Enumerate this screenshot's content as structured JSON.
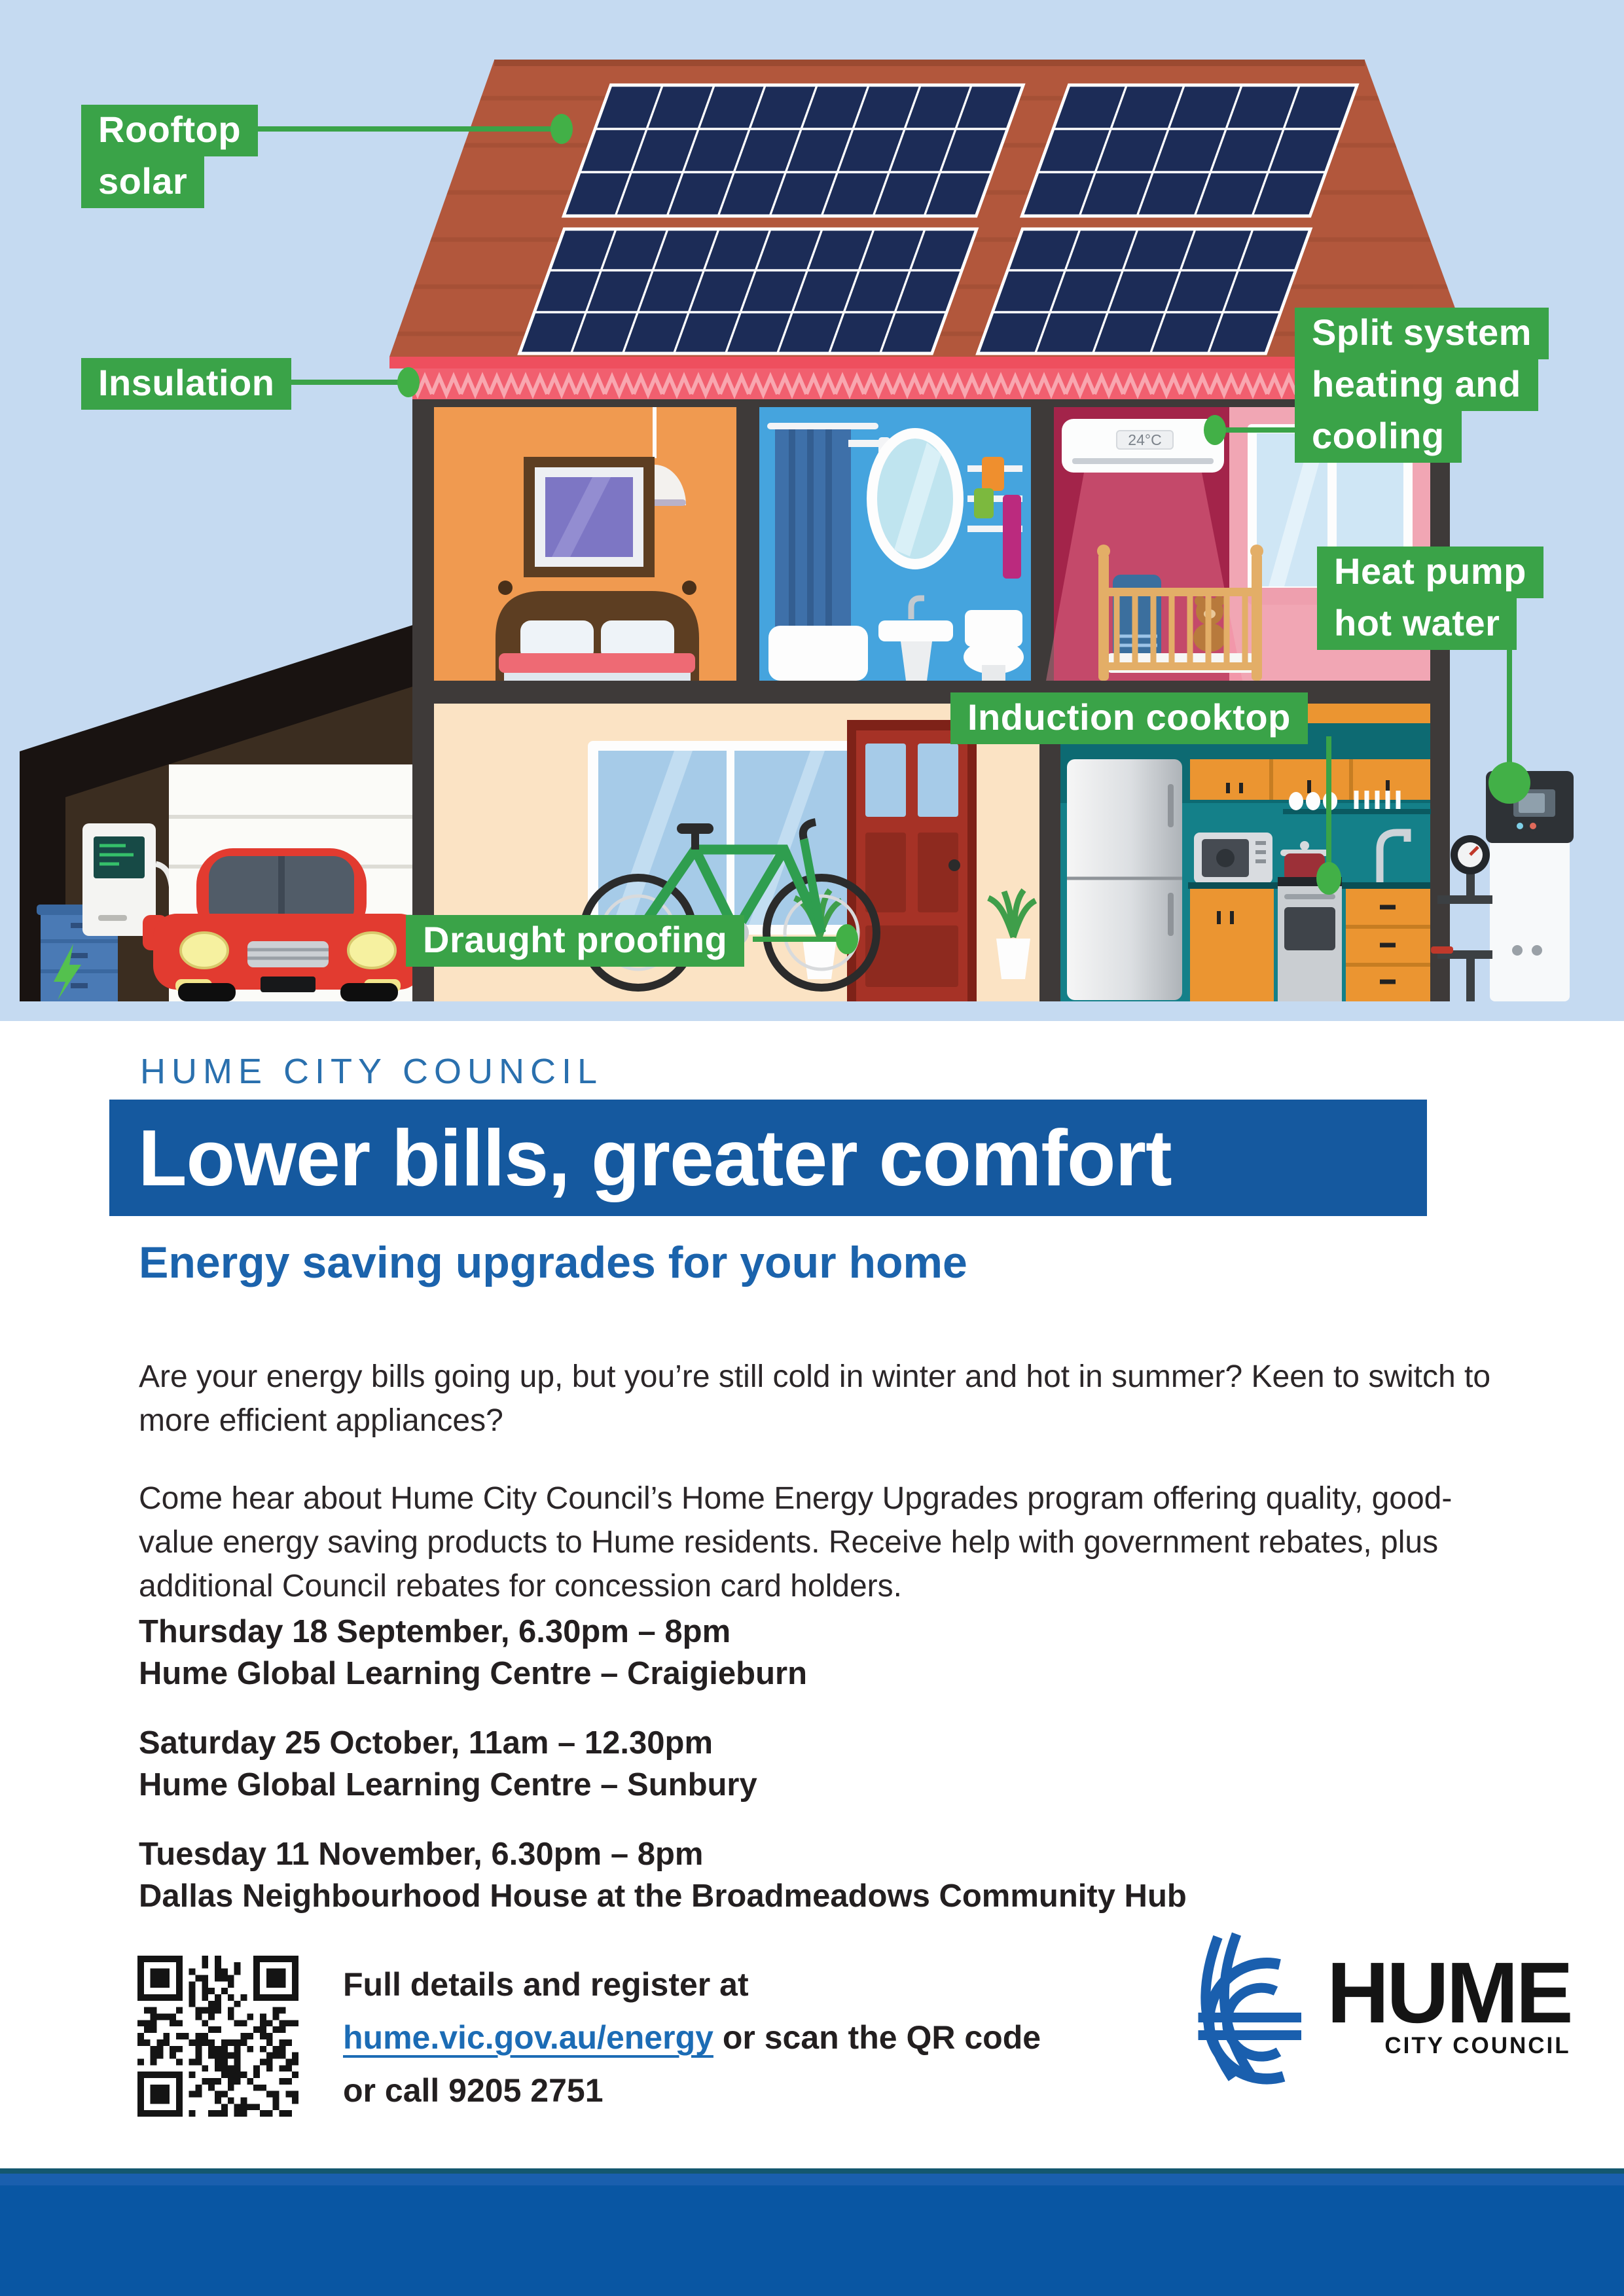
{
  "palette": {
    "accent_green": "#3aa348",
    "banner_blue": "#15599f",
    "heading_blue": "#1b63ac",
    "link_blue": "#1c6cb5",
    "footer_blue": "#0956a3",
    "sky_blue": "#c5daf1",
    "roof_red": "#b2573c",
    "solar_navy": "#1c2c57"
  },
  "illustration": {
    "labels": {
      "rooftop_solar": [
        "Rooftop",
        "solar"
      ],
      "insulation": [
        "Insulation"
      ],
      "split_system": [
        "Split system",
        "heating and",
        "cooling"
      ],
      "heat_pump": [
        "Heat pump",
        "hot water"
      ],
      "induction_cooktop": [
        "Induction cooktop"
      ],
      "draught_proofing": [
        "Draught proofing"
      ]
    },
    "ac_display": "24°C"
  },
  "content": {
    "eyebrow": "HUME CITY COUNCIL",
    "title": "Lower bills, greater comfort",
    "subtitle": "Energy saving upgrades for your home",
    "para1": "Are your energy bills going up, but you’re still cold in winter and hot in summer? Keen to switch to more efficient appliances?",
    "para2": "Come hear about Hume City Council’s Home Energy Upgrades program offering quality, good-value energy saving products to Hume residents. Receive help with government rebates, plus additional Council rebates for concession card holders.",
    "events": [
      {
        "datetime": "Thursday 18 September, 6.30pm – 8pm",
        "venue": "Hume Global Learning Centre – Craigieburn"
      },
      {
        "datetime": "Saturday 25 October, 11am – 12.30pm",
        "venue": "Hume Global Learning Centre – Sunbury"
      },
      {
        "datetime": "Tuesday 11 November, 6.30pm – 8pm",
        "venue": "Dallas Neighbourhood House at the Broadmeadows Community Hub"
      }
    ],
    "register": {
      "line1": "Full details and register at",
      "link": "hume.vic.gov.au/energy",
      "line2_rest": " or scan the QR code",
      "line3": "or call 9205 2751"
    },
    "logo": {
      "name": "HUME",
      "sub": "CITY COUNCIL"
    }
  }
}
